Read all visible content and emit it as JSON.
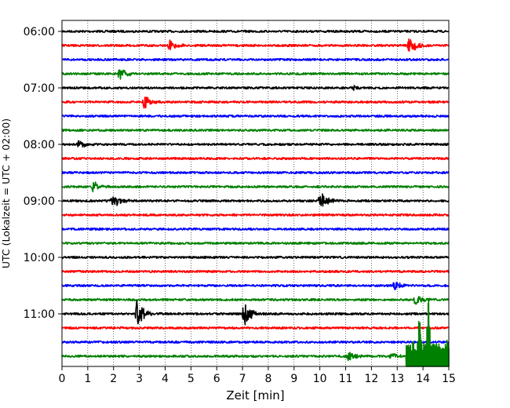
{
  "chart_data": {
    "type": "line",
    "title": "",
    "xlabel": "Zeit  [min]",
    "ylabel": "UTC (Lokalzeit = UTC + 02:00)",
    "xlim": [
      0,
      15
    ],
    "xticks": [
      "0",
      "1",
      "2",
      "3",
      "4",
      "5",
      "6",
      "7",
      "8",
      "9",
      "10",
      "11",
      "12",
      "13",
      "14",
      "15"
    ],
    "yticks": [
      "06:00",
      "07:00",
      "08:00",
      "09:00",
      "10:00",
      "11:00"
    ],
    "trace_interval_minutes": 15,
    "first_trace_start": "06:00",
    "grid": {
      "x": "dotted",
      "y": "none"
    },
    "trace_colors": [
      "#000000",
      "#ff0000",
      "#0000ff",
      "#008000"
    ],
    "traces": [
      {
        "start": "06:00",
        "color": "#000000",
        "events": []
      },
      {
        "start": "06:15",
        "color": "#ff0000",
        "events": [
          {
            "t": 4.15,
            "amp": 0.6
          },
          {
            "t": 13.45,
            "amp": 1.0
          }
        ]
      },
      {
        "start": "06:30",
        "color": "#0000ff",
        "events": []
      },
      {
        "start": "06:45",
        "color": "#008000",
        "events": [
          {
            "t": 2.2,
            "amp": 0.8
          }
        ]
      },
      {
        "start": "07:00",
        "color": "#000000",
        "events": [
          {
            "t": 11.3,
            "amp": 0.25
          }
        ]
      },
      {
        "start": "07:15",
        "color": "#ff0000",
        "events": [
          {
            "t": 3.2,
            "amp": 0.75
          }
        ]
      },
      {
        "start": "07:30",
        "color": "#0000ff",
        "events": []
      },
      {
        "start": "07:45",
        "color": "#008000",
        "events": []
      },
      {
        "start": "08:00",
        "color": "#000000",
        "events": [
          {
            "t": 0.65,
            "amp": 0.45
          }
        ]
      },
      {
        "start": "08:15",
        "color": "#ff0000",
        "events": []
      },
      {
        "start": "08:30",
        "color": "#0000ff",
        "events": []
      },
      {
        "start": "08:45",
        "color": "#008000",
        "events": [
          {
            "t": 1.2,
            "amp": 0.6
          }
        ]
      },
      {
        "start": "09:00",
        "color": "#000000",
        "events": [
          {
            "t": 1.95,
            "amp": 0.9
          },
          {
            "t": 10.0,
            "amp": 1.1
          }
        ]
      },
      {
        "start": "09:15",
        "color": "#ff0000",
        "events": []
      },
      {
        "start": "09:30",
        "color": "#0000ff",
        "events": []
      },
      {
        "start": "09:45",
        "color": "#008000",
        "events": []
      },
      {
        "start": "10:00",
        "color": "#000000",
        "events": []
      },
      {
        "start": "10:15",
        "color": "#ff0000",
        "events": []
      },
      {
        "start": "10:30",
        "color": "#0000ff",
        "events": [
          {
            "t": 12.9,
            "amp": 0.5
          }
        ]
      },
      {
        "start": "10:45",
        "color": "#008000",
        "events": [
          {
            "t": 13.7,
            "amp": 0.6
          }
        ]
      },
      {
        "start": "11:00",
        "color": "#000000",
        "events": [
          {
            "t": 2.9,
            "amp": 1.5
          },
          {
            "t": 7.05,
            "amp": 1.4
          }
        ]
      },
      {
        "start": "11:15",
        "color": "#ff0000",
        "events": []
      },
      {
        "start": "11:30",
        "color": "#0000ff",
        "events": []
      },
      {
        "start": "11:45",
        "color": "#008000",
        "events": [
          {
            "t": 11.1,
            "amp": 0.5
          },
          {
            "t": 12.75,
            "amp": 0.35
          }
        ],
        "burst": {
          "from": 13.35,
          "to": 15,
          "peak_minutes": [
            14.2,
            13.85
          ]
        }
      }
    ]
  }
}
